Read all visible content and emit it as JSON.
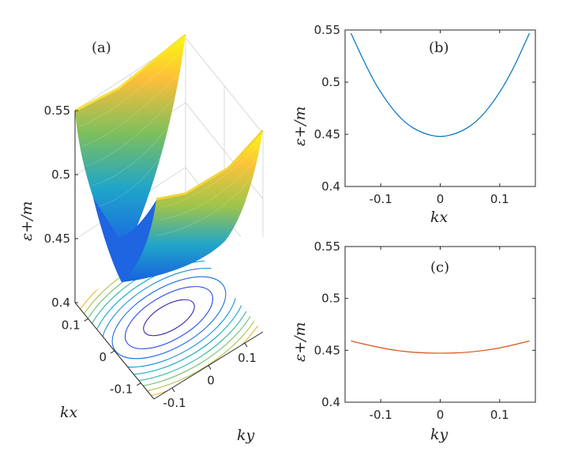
{
  "chart_data": [
    {
      "panel_label": "(a)",
      "type": "surface",
      "zlabel": "ε+/m",
      "xlabel": "kx",
      "ylabel": "ky",
      "zticks": [
        "0.55",
        "0.5",
        "0.45",
        "0.4"
      ],
      "xticks": [
        "0.1",
        "0",
        "-0.1"
      ],
      "yticks": [
        "-0.1",
        "0",
        "0.1"
      ],
      "zlim": [
        0.4,
        0.55
      ],
      "xlim": [
        -0.15,
        0.15
      ],
      "ylim": [
        -0.15,
        0.15
      ],
      "colormap": "parula",
      "contour_projection": true
    },
    {
      "panel_label": "(b)",
      "type": "line",
      "xlabel": "kx",
      "ylabel": "ε+/m",
      "xticks": [
        "-0.1",
        "0",
        "0.1"
      ],
      "yticks": [
        "0.55",
        "0.5",
        "0.45",
        "0.4"
      ],
      "xlim": [
        -0.16,
        0.16
      ],
      "ylim": [
        0.4,
        0.55
      ],
      "series": [
        {
          "color": "#0072BD",
          "x": [
            -0.15,
            -0.12,
            -0.09,
            -0.06,
            -0.03,
            0,
            0.03,
            0.06,
            0.09,
            0.12,
            0.15
          ],
          "y": [
            0.547,
            0.509,
            0.481,
            0.461,
            0.451,
            0.447,
            0.451,
            0.461,
            0.481,
            0.509,
            0.547
          ]
        }
      ]
    },
    {
      "panel_label": "(c)",
      "type": "line",
      "xlabel": "ky",
      "ylabel": "ε+/m",
      "xticks": [
        "-0.1",
        "0",
        "0.1"
      ],
      "yticks": [
        "0.55",
        "0.5",
        "0.45",
        "0.4"
      ],
      "xlim": [
        -0.16,
        0.16
      ],
      "ylim": [
        0.4,
        0.55
      ],
      "series": [
        {
          "color": "#D95319",
          "x": [
            -0.15,
            -0.1,
            -0.05,
            0,
            0.05,
            0.1,
            0.15
          ],
          "y": [
            0.459,
            0.452,
            0.448,
            0.447,
            0.448,
            0.452,
            0.459
          ]
        }
      ]
    }
  ]
}
